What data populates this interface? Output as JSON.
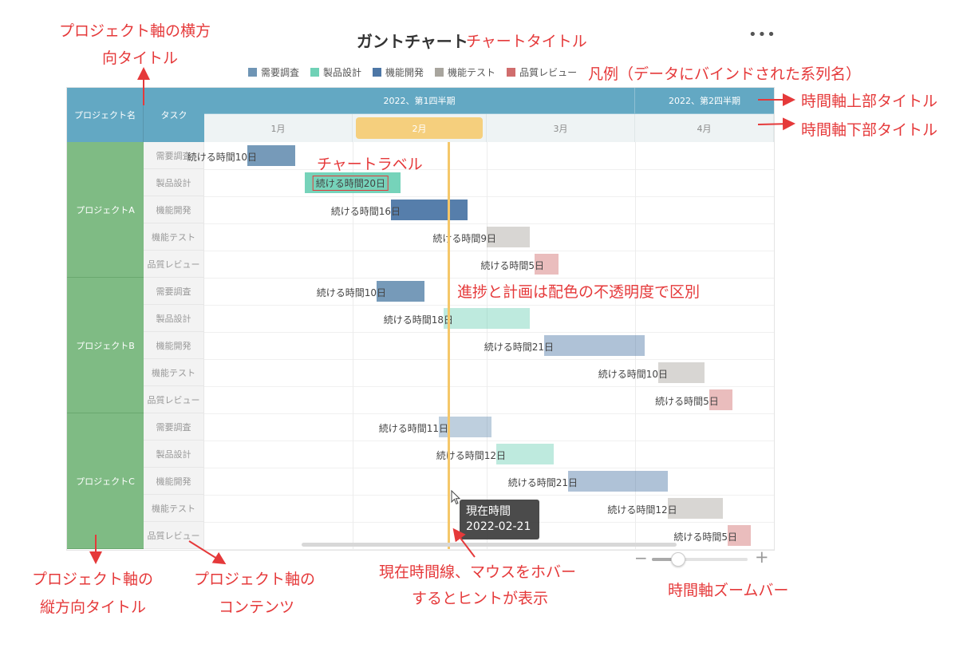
{
  "title": "ガントチャート",
  "more_menu": "•••",
  "legend": [
    {
      "name": "需要調査",
      "color": "#6f95b5"
    },
    {
      "name": "製品設計",
      "color": "#6fd1b6"
    },
    {
      "name": "機能開発",
      "color": "#4d77a6"
    },
    {
      "name": "機能テスト",
      "color": "#a8a59e"
    },
    {
      "name": "品質レビュー",
      "color": "#d06d6d"
    }
  ],
  "header": {
    "project_col": "プロジェクト名",
    "task_col": "タスク",
    "quarters": [
      "2022、第1四半期",
      "2022、第2四半期"
    ],
    "months": [
      "1月",
      "2月",
      "3月",
      "4月"
    ],
    "highlighted_month": "2月"
  },
  "chart_data": {
    "type": "gantt",
    "title": "ガントチャート",
    "x_range": [
      "2022-01-01",
      "2022-05-01"
    ],
    "current_time": "2022-02-21",
    "label_prefix": "続ける時間",
    "label_suffix": "日",
    "projects": [
      {
        "name": "プロジェクトA",
        "tasks": [
          {
            "task": "需要調査",
            "start": "2022-01-10",
            "duration": 10,
            "progress": "done"
          },
          {
            "task": "製品設計",
            "start": "2022-01-22",
            "duration": 20,
            "progress": "done"
          },
          {
            "task": "機能開発",
            "start": "2022-02-09",
            "duration": 16,
            "progress": "done"
          },
          {
            "task": "機能テスト",
            "start": "2022-03-01",
            "duration": 9,
            "progress": "plan"
          },
          {
            "task": "品質レビュー",
            "start": "2022-03-11",
            "duration": 5,
            "progress": "plan"
          }
        ]
      },
      {
        "name": "プロジェクトB",
        "tasks": [
          {
            "task": "需要調査",
            "start": "2022-02-06",
            "duration": 10,
            "progress": "done"
          },
          {
            "task": "製品設計",
            "start": "2022-02-20",
            "duration": 18,
            "progress": "plan"
          },
          {
            "task": "機能開発",
            "start": "2022-03-13",
            "duration": 21,
            "progress": "plan"
          },
          {
            "task": "機能テスト",
            "start": "2022-04-06",
            "duration": 10,
            "progress": "plan"
          },
          {
            "task": "品質レビュー",
            "start": "2022-04-17",
            "duration": 5,
            "progress": "plan"
          }
        ]
      },
      {
        "name": "プロジェクトC",
        "tasks": [
          {
            "task": "需要調査",
            "start": "2022-02-19",
            "duration": 11,
            "progress": "plan"
          },
          {
            "task": "製品設計",
            "start": "2022-03-03",
            "duration": 12,
            "progress": "plan"
          },
          {
            "task": "機能開発",
            "start": "2022-03-18",
            "duration": 21,
            "progress": "plan"
          },
          {
            "task": "機能テスト",
            "start": "2022-04-08",
            "duration": 12,
            "progress": "plan"
          },
          {
            "task": "品質レビュー",
            "start": "2022-04-21",
            "duration": 5,
            "progress": "plan"
          }
        ]
      }
    ]
  },
  "tooltip": {
    "title": "現在時間",
    "value": "2022-02-21"
  },
  "zoom": {
    "minus": "−",
    "plus": "+",
    "level": 0.27
  },
  "annotations": {
    "chart_title": "チャートタイトル",
    "legend": "凡例（データにバインドされた系列名）",
    "project_header_line1": "プロジェクト軸の横方",
    "project_header_line2": "向タイトル",
    "top_axis": "時間軸上部タイトル",
    "bottom_axis": "時間軸下部タイトル",
    "chart_label": "チャートラベル",
    "progress_note": "進捗と計画は配色の不透明度で区別",
    "project_vertical_line1": "プロジェクト軸の",
    "project_vertical_line2": "縦方向タイトル",
    "project_content_line1": "プロジェクト軸の",
    "project_content_line2": "コンテンツ",
    "now_line_line1": "現在時間線、マウスをホバー",
    "now_line_line2": "するとヒントが表示",
    "zoom_bar": "時間軸ズームバー"
  }
}
